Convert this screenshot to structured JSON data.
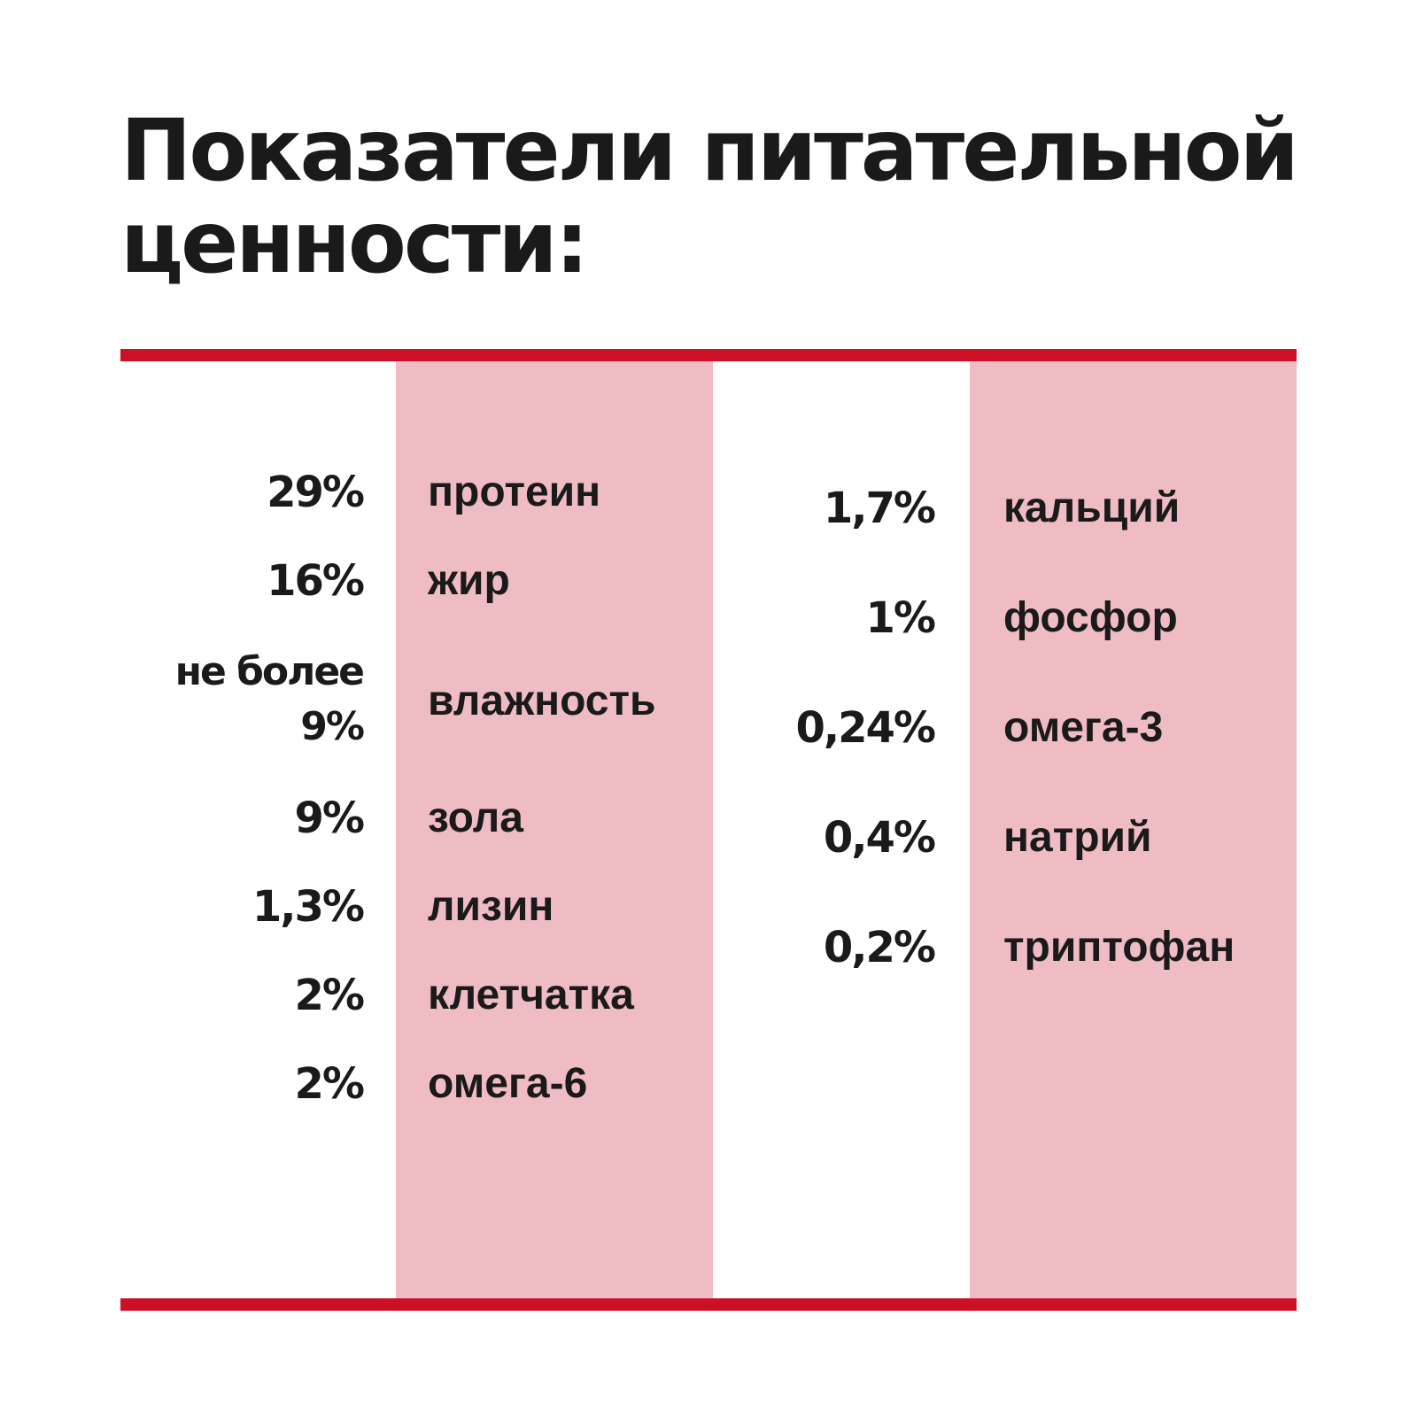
{
  "title": {
    "line1": "Показатели питательной",
    "line2": "ценности:"
  },
  "colors": {
    "accent": "#cc1126",
    "band": "#f0bcc3",
    "text": "#1a1a1a"
  },
  "left_column": [
    {
      "value": "29%",
      "name": "протеин"
    },
    {
      "value": "16%",
      "name": "жир"
    },
    {
      "value_prefix": "не более",
      "value": "9%",
      "name": "влажность"
    },
    {
      "value": "9%",
      "name": "зола"
    },
    {
      "value": "1,3%",
      "name": "лизин"
    },
    {
      "value": "2%",
      "name": "клетчатка"
    },
    {
      "value": "2%",
      "name": "омега-6"
    }
  ],
  "right_column": [
    {
      "value": "1,7%",
      "name": "кальций"
    },
    {
      "value": "1%",
      "name": "фосфор"
    },
    {
      "value": "0,24%",
      "name": "омега-3"
    },
    {
      "value": "0,4%",
      "name": "натрий"
    },
    {
      "value": "0,2%",
      "name": "триптофан"
    }
  ]
}
